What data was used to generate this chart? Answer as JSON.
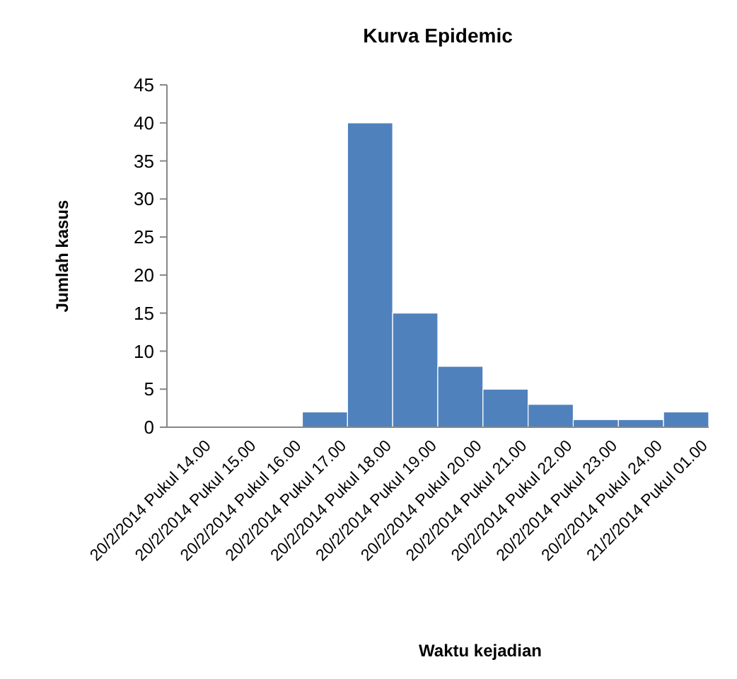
{
  "chart_data": {
    "type": "bar",
    "title": "Kurva Epidemic",
    "xlabel": "Waktu kejadian",
    "ylabel": "Jumlah kasus",
    "categories": [
      "20/2/2014 Pukul 14.00",
      "20/2/2014 Pukul 15.00",
      "20/2/2014 Pukul 16.00",
      "20/2/2014 Pukul 17.00",
      "20/2/2014 Pukul 18.00",
      "20/2/2014 Pukul 19.00",
      "20/2/2014 Pukul 20.00",
      "20/2/2014 Pukul 21.00",
      "20/2/2014 Pukul 22.00",
      "20/2/2014 Pukul 23.00",
      "20/2/2014 Pukul 24.00",
      "21/2/2014 Pukul 01.00"
    ],
    "values": [
      0,
      0,
      0,
      2,
      40,
      15,
      8,
      5,
      3,
      1,
      1,
      2
    ],
    "color": "#4f81bd",
    "ylim": [
      0,
      45
    ],
    "yticks": [
      0,
      5,
      10,
      15,
      20,
      25,
      30,
      35,
      40,
      45
    ],
    "grid": false
  }
}
